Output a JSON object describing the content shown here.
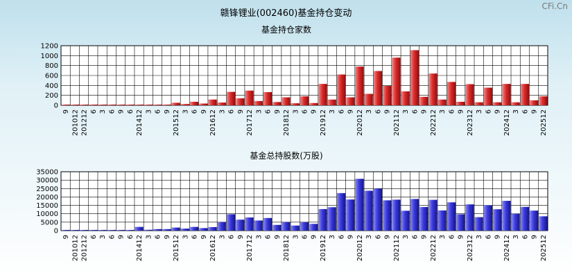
{
  "title": "赣锋锂业(002460)基金持仓变动",
  "brand": "CFi.Cn",
  "colors": {
    "red_bar": "#dd2b2b",
    "blue_bar": "#3434dd",
    "grid": "#000000",
    "plot_bg": "#ffffff"
  },
  "chart_data": [
    {
      "type": "bar",
      "title": "基金持仓家数",
      "ylim": [
        0,
        1200
      ],
      "yticks": [
        0,
        200,
        400,
        600,
        800,
        1000,
        1200
      ],
      "grid": true,
      "xtick_labels": [
        "9",
        "201012",
        "201212",
        "6",
        "3",
        "6",
        "9",
        "6",
        "201412",
        "3",
        "6",
        "9",
        "201512",
        "3",
        "6",
        "9",
        "201612",
        "3",
        "6",
        "9",
        "201712",
        "3",
        "6",
        "9",
        "201812",
        "3",
        "6",
        "9",
        "201912",
        "3",
        "6",
        "9",
        "202012",
        "3",
        "6",
        "9",
        "202112",
        "3",
        "6",
        "9",
        "202212",
        "3",
        "6",
        "9",
        "202312",
        "3",
        "6",
        "9",
        "202412",
        "3",
        "6",
        "9",
        "202512"
      ],
      "values": [
        3,
        3,
        3,
        3,
        3,
        3,
        3,
        3,
        3,
        3,
        3,
        3,
        50,
        25,
        70,
        35,
        115,
        55,
        270,
        140,
        295,
        85,
        265,
        65,
        160,
        40,
        180,
        45,
        430,
        115,
        620,
        160,
        780,
        230,
        690,
        390,
        960,
        280,
        1110,
        170,
        640,
        115,
        470,
        70,
        425,
        60,
        355,
        60,
        430,
        60,
        430,
        100,
        180
      ]
    },
    {
      "type": "bar",
      "title": "基金总持股数(万股)",
      "ylim": [
        0,
        35000
      ],
      "yticks": [
        0,
        5000,
        10000,
        15000,
        20000,
        25000,
        30000,
        35000
      ],
      "grid": true,
      "xtick_labels": [
        "9",
        "201012",
        "201212",
        "6",
        "3",
        "6",
        "9",
        "6",
        "201412",
        "3",
        "6",
        "9",
        "201512",
        "3",
        "6",
        "9",
        "201612",
        "3",
        "6",
        "9",
        "201712",
        "3",
        "6",
        "9",
        "201812",
        "3",
        "6",
        "9",
        "201912",
        "3",
        "6",
        "9",
        "202012",
        "3",
        "6",
        "9",
        "202112",
        "3",
        "6",
        "9",
        "202212",
        "3",
        "6",
        "9",
        "202312",
        "3",
        "6",
        "9",
        "202412",
        "3",
        "6",
        "9",
        "202512"
      ],
      "values": [
        300,
        300,
        300,
        300,
        300,
        300,
        300,
        300,
        2200,
        500,
        900,
        900,
        1800,
        1200,
        2200,
        1500,
        2100,
        5000,
        9700,
        6500,
        7800,
        6000,
        7500,
        3400,
        5000,
        3000,
        5000,
        4000,
        12800,
        13900,
        22300,
        18500,
        30800,
        23700,
        25000,
        18000,
        18400,
        11800,
        18800,
        14000,
        18300,
        12000,
        16800,
        9700,
        15600,
        8000,
        15000,
        12700,
        17700,
        10000,
        14100,
        11900,
        8500
      ]
    }
  ]
}
